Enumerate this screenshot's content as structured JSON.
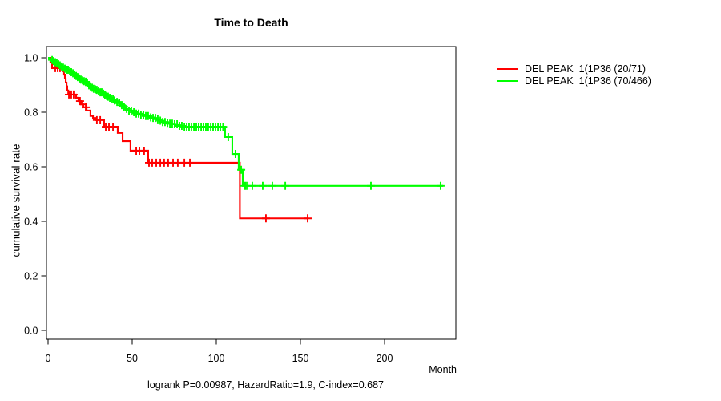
{
  "chart_data": {
    "type": "line",
    "subtype": "kaplan-meier-step-survival",
    "title": "Time to Death",
    "xlabel": "Month",
    "ylabel": "cumulative survival rate",
    "footer": "logrank P=0.00987, HazardRatio=1.9, C-index=0.687",
    "axis_color": "#000000",
    "background": "#ffffff",
    "xlim": [
      0,
      242
    ],
    "ylim": [
      0,
      1.0
    ],
    "x_ticks": [
      0,
      50,
      100,
      150,
      200
    ],
    "y_ticks": [
      "0.0",
      "0.2",
      "0.4",
      "0.6",
      "0.8",
      "1.0"
    ],
    "grid": false,
    "legend_position": "right-outside",
    "series": [
      {
        "name": "DEL PEAK  1(1P36 (20/71)",
        "color": "#ff0000",
        "end_month": 154.8,
        "steps": [
          [
            0,
            1.0
          ],
          [
            1.4,
            0.985
          ],
          [
            2.4,
            0.962
          ],
          [
            9,
            0.953
          ],
          [
            9.5,
            0.938
          ],
          [
            10,
            0.924
          ],
          [
            10.5,
            0.909
          ],
          [
            11,
            0.895
          ],
          [
            11.4,
            0.88
          ],
          [
            12,
            0.865
          ],
          [
            16.7,
            0.853
          ],
          [
            18.1,
            0.841
          ],
          [
            19.5,
            0.829
          ],
          [
            21,
            0.818
          ],
          [
            22.9,
            0.806
          ],
          [
            25.2,
            0.786
          ],
          [
            26.7,
            0.779
          ],
          [
            28.6,
            0.771
          ],
          [
            33.3,
            0.747
          ],
          [
            41.4,
            0.724
          ],
          [
            44.3,
            0.694
          ],
          [
            49,
            0.659
          ],
          [
            59.5,
            0.615
          ],
          [
            114,
            0.411
          ]
        ],
        "censor_months": [
          4.3,
          5.7,
          7.1,
          8.6,
          12.4,
          13.8,
          15.2,
          19,
          20.5,
          22.4,
          29,
          31,
          34.3,
          36.2,
          38.6,
          52.4,
          54.3,
          57.1,
          60,
          61.9,
          64.3,
          66.7,
          69,
          71.4,
          74.3,
          77.1,
          81,
          84.3,
          129.5,
          154.3
        ]
      },
      {
        "name": "DEL PEAK  1(1P36 (70/466)",
        "color": "#00ff00",
        "end_month": 234.8,
        "steps": [
          [
            0,
            1.0
          ],
          [
            1,
            0.996
          ],
          [
            2,
            0.992
          ],
          [
            3,
            0.988
          ],
          [
            4,
            0.984
          ],
          [
            5,
            0.98
          ],
          [
            6,
            0.976
          ],
          [
            7,
            0.972
          ],
          [
            8,
            0.968
          ],
          [
            9,
            0.964
          ],
          [
            10,
            0.96
          ],
          [
            11,
            0.956
          ],
          [
            12,
            0.951
          ],
          [
            13,
            0.947
          ],
          [
            14,
            0.943
          ],
          [
            15,
            0.938
          ],
          [
            16,
            0.933
          ],
          [
            17,
            0.929
          ],
          [
            18,
            0.924
          ],
          [
            19,
            0.92
          ],
          [
            20,
            0.917
          ],
          [
            21,
            0.914
          ],
          [
            22,
            0.912
          ],
          [
            23,
            0.906
          ],
          [
            24,
            0.899
          ],
          [
            25,
            0.895
          ],
          [
            26,
            0.89
          ],
          [
            27,
            0.886
          ],
          [
            28,
            0.884
          ],
          [
            29,
            0.882
          ],
          [
            30,
            0.877
          ],
          [
            31,
            0.873
          ],
          [
            32,
            0.868
          ],
          [
            33,
            0.864
          ],
          [
            34,
            0.86
          ],
          [
            35,
            0.857
          ],
          [
            36,
            0.853
          ],
          [
            37,
            0.85
          ],
          [
            38,
            0.847
          ],
          [
            39,
            0.843
          ],
          [
            40,
            0.838
          ],
          [
            41.5,
            0.833
          ],
          [
            43,
            0.826
          ],
          [
            44.5,
            0.82
          ],
          [
            46,
            0.812
          ],
          [
            48,
            0.806
          ],
          [
            50,
            0.8
          ],
          [
            52,
            0.795
          ],
          [
            54,
            0.791
          ],
          [
            57,
            0.786
          ],
          [
            60,
            0.781
          ],
          [
            62,
            0.779
          ],
          [
            64,
            0.774
          ],
          [
            66,
            0.769
          ],
          [
            68,
            0.764
          ],
          [
            70,
            0.761
          ],
          [
            72,
            0.758
          ],
          [
            75,
            0.756
          ],
          [
            78,
            0.75
          ],
          [
            80,
            0.747
          ],
          [
            105.2,
            0.709
          ],
          [
            109.5,
            0.647
          ],
          [
            113.3,
            0.589
          ],
          [
            115.7,
            0.53
          ]
        ],
        "censor_months": [
          2.4,
          3.3,
          4.3,
          5.2,
          6.2,
          7.1,
          8.1,
          9,
          10,
          11,
          11.9,
          12.9,
          13.8,
          14.8,
          15.7,
          16.7,
          17.6,
          18.6,
          19.5,
          20.5,
          21.4,
          22.4,
          23.3,
          24.3,
          25.2,
          26.2,
          27.1,
          28.1,
          29,
          30,
          31,
          31.9,
          32.9,
          33.8,
          34.8,
          35.7,
          36.7,
          37.6,
          38.6,
          39.5,
          41,
          42.4,
          43.8,
          45.2,
          46.7,
          48.1,
          49.5,
          51,
          52.4,
          53.8,
          55.2,
          56.7,
          58.1,
          59.5,
          61,
          62.4,
          63.8,
          65.2,
          66.7,
          68.1,
          69.5,
          71,
          72.4,
          73.8,
          75.2,
          76.7,
          78.1,
          79.5,
          81,
          82.4,
          83.8,
          85.2,
          86.7,
          88.1,
          89.5,
          91,
          92.4,
          93.8,
          95.2,
          96.7,
          98.1,
          99.5,
          101,
          102.4,
          104,
          107.1,
          111.4,
          114.8,
          116.7,
          117.6,
          118.6,
          121.4,
          127.6,
          133.3,
          141,
          191.9,
          233.3
        ]
      }
    ]
  }
}
